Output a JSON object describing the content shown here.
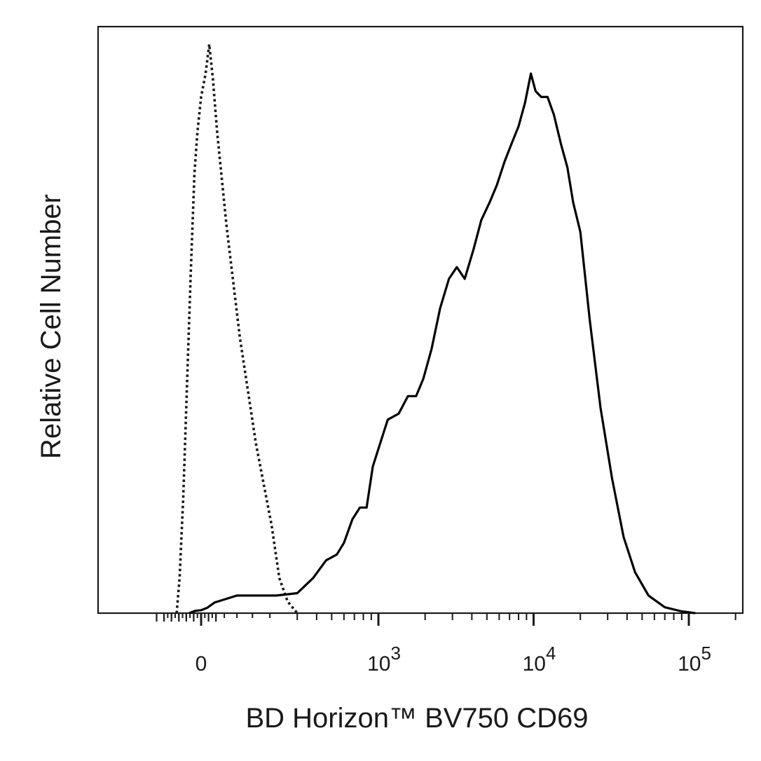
{
  "chart_data": {
    "type": "line",
    "chart_kind": "flow cytometry histogram",
    "xlabel": "BD Horizon™ BV750 CD69",
    "ylabel": "Relative Cell Number",
    "x_scale": "biexponential (linear near 0, log above ~10^2.3)",
    "x_tick_labels": [
      {
        "value": 0,
        "base": "0",
        "exp": ""
      },
      {
        "value": 1000,
        "base": "10",
        "exp": "3"
      },
      {
        "value": 10000,
        "base": "10",
        "exp": "4"
      },
      {
        "value": 100000,
        "base": "10",
        "exp": "5"
      }
    ],
    "xlim": [
      -300,
      250000
    ],
    "ylim": [
      0,
      1
    ],
    "y_ticks_labeled": false,
    "grid": false,
    "legend": "none",
    "series": [
      {
        "style": "dotted",
        "color": "#1a1a1a",
        "points": [
          [
            -165,
            0.0
          ],
          [
            -145,
            0.06
          ],
          [
            -120,
            0.2
          ],
          [
            -95,
            0.39
          ],
          [
            -70,
            0.58
          ],
          [
            -45,
            0.75
          ],
          [
            -25,
            0.82
          ],
          [
            0,
            0.88
          ],
          [
            30,
            0.92
          ],
          [
            55,
            0.97
          ],
          [
            80,
            0.91
          ],
          [
            105,
            0.82
          ],
          [
            130,
            0.66
          ],
          [
            155,
            0.47
          ],
          [
            180,
            0.29
          ],
          [
            205,
            0.15
          ],
          [
            230,
            0.06
          ],
          [
            260,
            0.02
          ],
          [
            300,
            0.0
          ]
        ]
      },
      {
        "style": "solid",
        "color": "#000000",
        "points": [
          [
            -80,
            0.0
          ],
          [
            -40,
            0.004
          ],
          [
            0,
            0.005
          ],
          [
            40,
            0.009
          ],
          [
            90,
            0.018
          ],
          [
            150,
            0.03
          ],
          [
            220,
            0.03
          ],
          [
            300,
            0.034
          ],
          [
            380,
            0.06
          ],
          [
            460,
            0.09
          ],
          [
            540,
            0.1
          ],
          [
            600,
            0.12
          ],
          [
            680,
            0.16
          ],
          [
            760,
            0.18
          ],
          [
            840,
            0.18
          ],
          [
            920,
            0.25
          ],
          [
            1000,
            0.28
          ],
          [
            1150,
            0.33
          ],
          [
            1350,
            0.34
          ],
          [
            1550,
            0.37
          ],
          [
            1750,
            0.37
          ],
          [
            1950,
            0.4
          ],
          [
            2200,
            0.45
          ],
          [
            2500,
            0.52
          ],
          [
            2850,
            0.57
          ],
          [
            3200,
            0.59
          ],
          [
            3600,
            0.57
          ],
          [
            4100,
            0.62
          ],
          [
            4600,
            0.67
          ],
          [
            5200,
            0.7
          ],
          [
            5800,
            0.73
          ],
          [
            6500,
            0.77
          ],
          [
            7200,
            0.8
          ],
          [
            8000,
            0.83
          ],
          [
            8800,
            0.87
          ],
          [
            9600,
            0.92
          ],
          [
            10300,
            0.89
          ],
          [
            11200,
            0.88
          ],
          [
            12300,
            0.88
          ],
          [
            13500,
            0.85
          ],
          [
            15000,
            0.8
          ],
          [
            16500,
            0.76
          ],
          [
            18000,
            0.7
          ],
          [
            20000,
            0.65
          ],
          [
            23000,
            0.5
          ],
          [
            27000,
            0.35
          ],
          [
            32000,
            0.23
          ],
          [
            38000,
            0.13
          ],
          [
            45000,
            0.07
          ],
          [
            55000,
            0.03
          ],
          [
            70000,
            0.01
          ],
          [
            90000,
            0.003
          ],
          [
            110000,
            0.0
          ]
        ]
      }
    ]
  }
}
